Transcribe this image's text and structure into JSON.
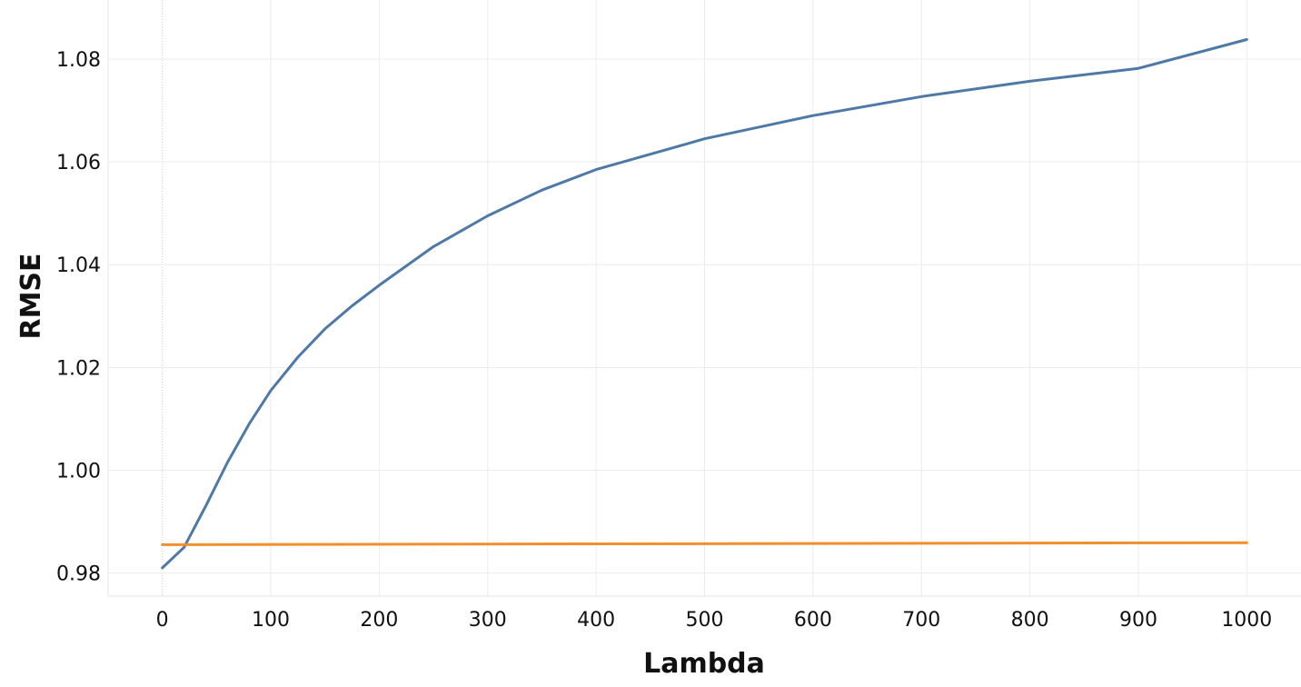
{
  "chart_data": {
    "type": "line",
    "title": "",
    "xlabel": "Lambda",
    "ylabel": "RMSE",
    "xlim": [
      -50,
      1050
    ],
    "ylim": [
      0.9755,
      1.0915
    ],
    "x_ticks": [
      0,
      100,
      200,
      300,
      400,
      500,
      600,
      700,
      800,
      900,
      1000
    ],
    "y_ticks": [
      0.98,
      1.0,
      1.02,
      1.04,
      1.06,
      1.08
    ],
    "y_tick_labels": [
      "0.98",
      "1.00",
      "1.02",
      "1.04",
      "1.06",
      "1.08"
    ],
    "grid": true,
    "legend": "none",
    "series": [
      {
        "color": "#4e79a7",
        "x": [
          0,
          20,
          40,
          60,
          80,
          100,
          125,
          150,
          175,
          200,
          250,
          300,
          350,
          400,
          450,
          500,
          600,
          700,
          800,
          900,
          1000
        ],
        "y": [
          0.981,
          0.985,
          0.993,
          1.0015,
          1.009,
          1.0155,
          1.022,
          1.0275,
          1.032,
          1.036,
          1.0435,
          1.0495,
          1.0545,
          1.0585,
          1.0615,
          1.0645,
          1.069,
          1.0727,
          1.0757,
          1.0782,
          1.0838
        ]
      },
      {
        "color": "#f28e2b",
        "x": [
          0,
          1000
        ],
        "y": [
          0.9855,
          0.9859
        ]
      }
    ]
  }
}
